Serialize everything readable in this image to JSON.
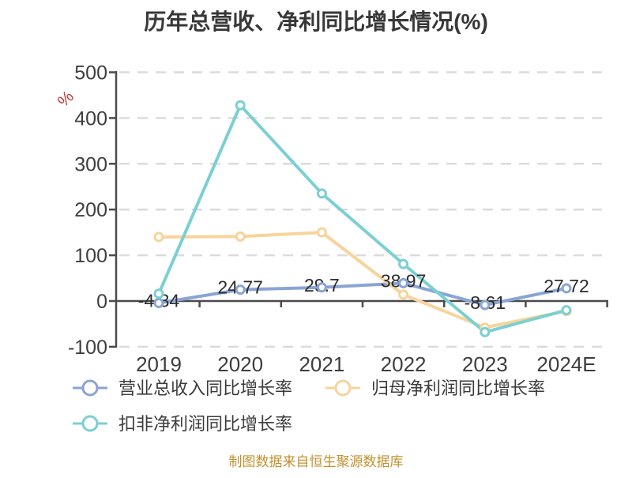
{
  "title": "历年总营收、净利同比增长情况(%)",
  "y_unit": "%",
  "footer": "制图数据来自恒生聚源数据库",
  "colors": {
    "title": "#383838",
    "unit": "#C23531",
    "axis": "#4A4A4A",
    "grid": "#DBDBDB",
    "tick_label": "#3E3E3E",
    "point_label": "#2B2B2B",
    "legend_text": "#3B3B3B",
    "footer": "#C2922F",
    "marker_fill": "#FFFFFF"
  },
  "chart_data": {
    "type": "line",
    "title": "历年总营收、净利同比增长情况(%)",
    "categories": [
      "2019",
      "2020",
      "2021",
      "2022",
      "2023",
      "2024E"
    ],
    "series": [
      {
        "name": "营业总收入同比增长率",
        "color": "#8AA4D4",
        "values": [
          -4.34,
          24.77,
          29.7,
          38.97,
          -8.61,
          27.72
        ],
        "labels": [
          "-4.34",
          "24.77",
          "29.7",
          "38.97",
          "-8.61",
          "27.72"
        ]
      },
      {
        "name": "归母净利润同比增长率",
        "color": "#F6D49B",
        "values": [
          140,
          141,
          150,
          14,
          -58,
          -22
        ]
      },
      {
        "name": "扣非净利润同比增长率",
        "color": "#7CCFD3",
        "values": [
          16,
          428,
          235,
          81,
          -68,
          -20
        ]
      }
    ],
    "ylabel": "%",
    "xlabel": "",
    "ylim": [
      -100,
      500
    ],
    "yticks": [
      500,
      400,
      300,
      200,
      100,
      0,
      -100
    ],
    "grid": true,
    "grid_style": "dashed",
    "legend_position": "bottom"
  }
}
